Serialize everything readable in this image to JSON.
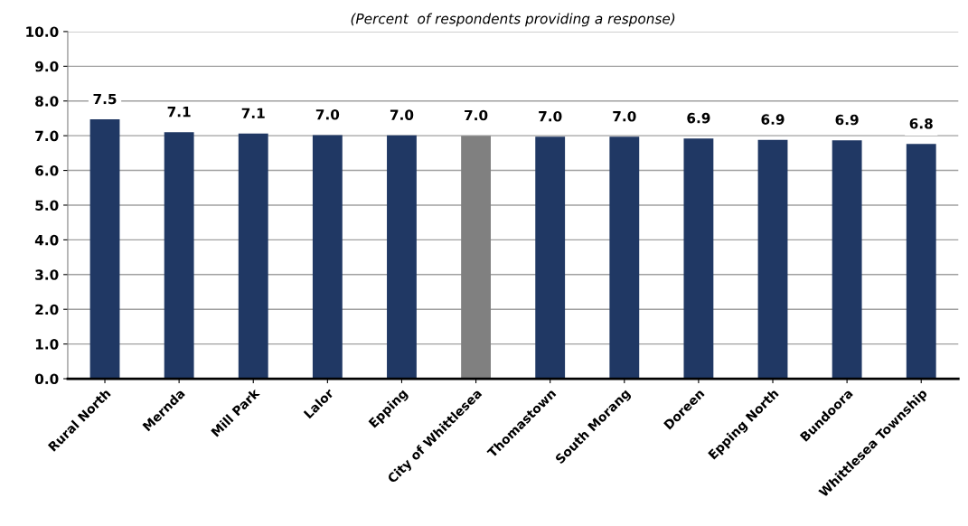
{
  "chart_data": {
    "type": "bar",
    "subtitle": "(Percent  of respondents providing a response)",
    "categories": [
      "Rural North",
      "Mernda",
      "Mill Park",
      "Lalor",
      "Epping",
      "City of Whittlesea",
      "Thomastown",
      "South Morang",
      "Doreen",
      "Epping North",
      "Bundoora",
      "Whittlesea Township"
    ],
    "values": [
      7.47,
      7.1,
      7.06,
      7.02,
      7.01,
      7.0,
      6.97,
      6.97,
      6.92,
      6.88,
      6.87,
      6.76
    ],
    "value_labels": [
      "7.5",
      "7.1",
      "7.1",
      "7.0",
      "7.0",
      "7.0",
      "7.0",
      "7.0",
      "6.9",
      "6.9",
      "6.9",
      "6.8"
    ],
    "colors": [
      "#203864",
      "#203864",
      "#203864",
      "#203864",
      "#203864",
      "#808080",
      "#203864",
      "#203864",
      "#203864",
      "#203864",
      "#203864",
      "#203864"
    ],
    "ylim": [
      0,
      10
    ],
    "yticks": [
      {
        "value": 0,
        "label": "0.0"
      },
      {
        "value": 1,
        "label": "1.0"
      },
      {
        "value": 2,
        "label": "2.0"
      },
      {
        "value": 3,
        "label": "3.0"
      },
      {
        "value": 4,
        "label": "4.0"
      },
      {
        "value": 5,
        "label": "5.0"
      },
      {
        "value": 6,
        "label": "6.0"
      },
      {
        "value": 7,
        "label": "7.0"
      },
      {
        "value": 8,
        "label": "8.0"
      },
      {
        "value": 9,
        "label": "9.0"
      },
      {
        "value": 10,
        "label": "10.0"
      }
    ],
    "grid": "y"
  }
}
